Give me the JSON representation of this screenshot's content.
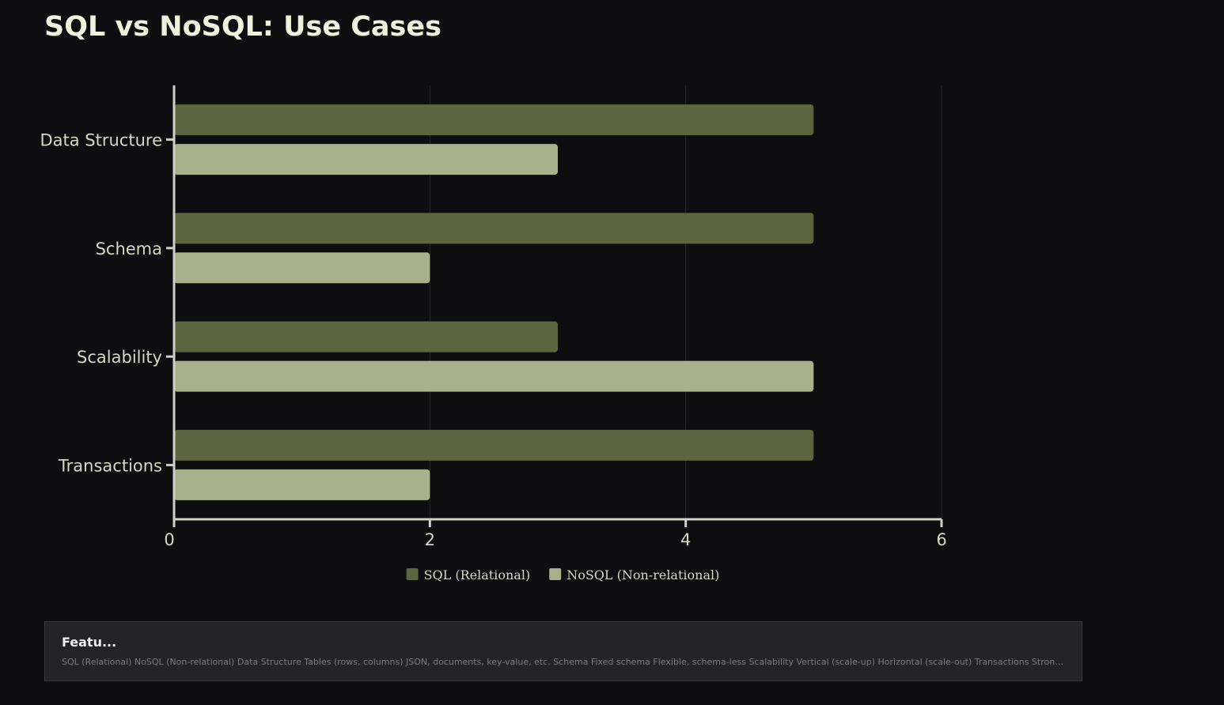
{
  "title": "SQL vs NoSQL: Use Cases",
  "colors": {
    "background": "#0e0e10",
    "sql": "#5c6540",
    "nosql": "#a8b08c",
    "axis": "#d0d0c8",
    "grid": "#2c2c2e",
    "text": "#d4d8c6"
  },
  "chart_data": {
    "type": "bar",
    "orientation": "horizontal",
    "title": "",
    "xlabel": "",
    "ylabel": "",
    "categories": [
      "Data Structure",
      "Schema",
      "Scalability",
      "Transactions"
    ],
    "series": [
      {
        "name": "SQL (Relational)",
        "values": [
          5,
          5,
          3,
          5
        ],
        "color": "#5c6540"
      },
      {
        "name": "NoSQL (Non-relational)",
        "values": [
          3,
          2,
          5,
          2
        ],
        "color": "#a8b08c"
      }
    ],
    "xlim": [
      0,
      6
    ],
    "xticks": [
      0,
      2,
      4,
      6
    ],
    "xtick_labels": [
      "0",
      "2",
      "4",
      "6"
    ],
    "grid": "vertical",
    "legend_position": "bottom-center"
  },
  "footer": {
    "title": "Featu...",
    "text": "SQL (Relational) NoSQL (Non-relational) Data Structure Tables (rows, columns) JSON, documents, key-value, etc. Schema Fixed schema Flexible, schema-less Scalability Vertical (scale-up) Horizontal (scale-out) Transactions Strong..."
  }
}
